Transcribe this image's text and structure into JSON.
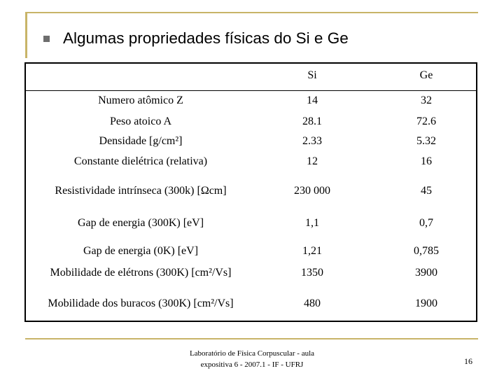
{
  "title": "Algumas propriedades físicas do Si e Ge",
  "table": {
    "headers": [
      "",
      "Si",
      "Ge"
    ],
    "rows": [
      {
        "property": "Numero atômico Z",
        "si": "14",
        "ge": "32"
      },
      {
        "property": "Peso atoico A",
        "si": "28.1",
        "ge": "72.6"
      },
      {
        "property": "Densidade [g/cm²]",
        "si": "2.33",
        "ge": "5.32"
      },
      {
        "property": "Constante dielétrica (relativa)",
        "si": "12",
        "ge": "16"
      },
      {
        "property": "Resistividade intrínseca (300k) [Ωcm]",
        "si": "230 000",
        "ge": "45"
      },
      {
        "property": "Gap de energia (300K) [eV]",
        "si": "1,1",
        "ge": "0,7"
      },
      {
        "property": "Gap de energia (0K) [eV]",
        "si": "1,21",
        "ge": "0,785"
      },
      {
        "property": "Mobilidade de elétrons (300K) [cm²/Vs]",
        "si": "1350",
        "ge": "3900"
      },
      {
        "property": "Mobilidade dos buracos (300K) [cm²/Vs]",
        "si": "480",
        "ge": "1900"
      }
    ]
  },
  "footer": {
    "line1": "Laboratório de Física Corpuscular - aula",
    "line2": "expositiva 6 - 2007.1 - IF - UFRJ"
  },
  "page_number": "16",
  "colors": {
    "accent_rule": "#c8b468",
    "bullet": "#6e6e6e"
  }
}
